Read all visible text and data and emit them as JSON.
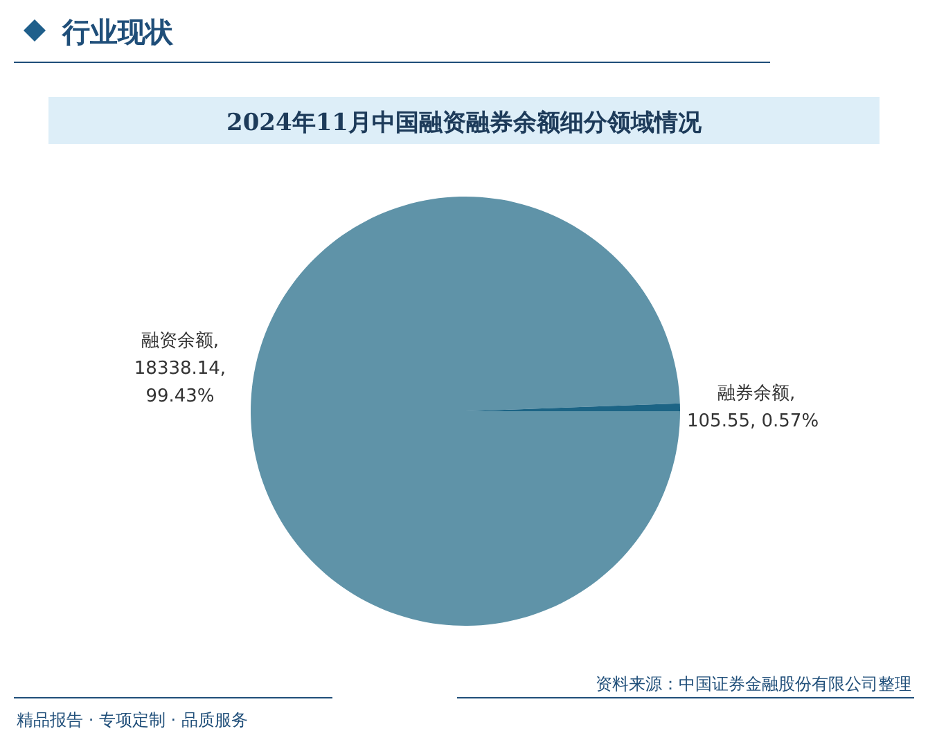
{
  "chart_data": {
    "type": "pie",
    "title": "2024年11月中国融资融券余额细分领域情况",
    "subtitle": "行业现状",
    "categories": [
      "融资余额",
      "融券余额"
    ],
    "values": [
      18338.14,
      105.55
    ],
    "colors": [
      "#5f93a8",
      "#1c6485"
    ],
    "value_labels": [
      ",\n18338.14,\n99.43%",
      ",\n105.55, 0.57%"
    ],
    "annotations": [
      "资料来源：中国证券金融股份有限公司整理",
      "精品报告 · 专项定制 · 品质服务"
    ]
  }
}
